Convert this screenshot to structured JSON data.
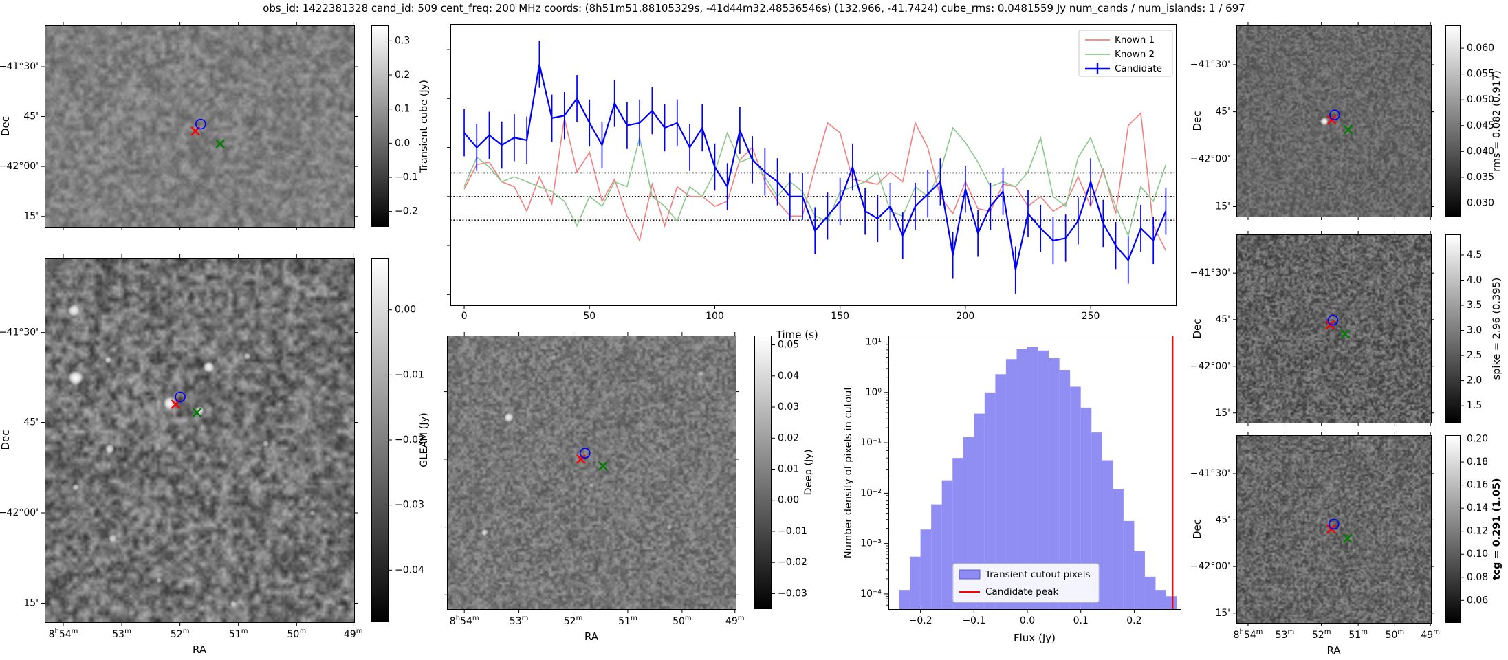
{
  "title": "obs_id: 1422381328 cand_id: 509 cent_freq: 200 MHz coords: (8h51m51.88105329s, -41d44m32.48536546s) (132.966, -41.7424) cube_rms: 0.0481559 Jy num_cands / num_islands: 1 / 697",
  "colors": {
    "known1": "#f28080",
    "known2": "#8cc98c",
    "candidate": "#0000ff",
    "marker_red": "#ff0000",
    "marker_green": "#007d00",
    "marker_blue": "#0000ff",
    "hist_fill": "#7472f0",
    "peak_line": "#ff0000",
    "dotted_line": "#000000"
  },
  "dec_ticks": [
    {
      "label": "-41°30'",
      "f": 0.205
    },
    {
      "label": "45'",
      "f": 0.452
    },
    {
      "label": "-42°00'",
      "f": 0.7
    },
    {
      "label": "15'",
      "f": 0.948
    }
  ],
  "ra_ticks": [
    {
      "label": "8h54m",
      "f": 0.06
    },
    {
      "label": "53m",
      "f": 0.249
    },
    {
      "label": "52m",
      "f": 0.437
    },
    {
      "label": "51m",
      "f": 0.626
    },
    {
      "label": "50m",
      "f": 0.814
    },
    {
      "label": "49m",
      "f": 0.997
    }
  ],
  "cutouts": {
    "transient": {
      "xlabel": "",
      "ylabel": "Dec",
      "ra_labeled": false,
      "dec_labeled": true,
      "colorbar": {
        "label": "Transient cube (Jy)",
        "bold": false,
        "vmin": -0.245,
        "vmax": 0.345,
        "ticks": [
          "0.3",
          "0.2",
          "0.1",
          "0.0",
          "-0.1",
          "-0.2"
        ]
      },
      "markers": [
        {
          "shape": "x",
          "color": "#ff0000",
          "fx": 0.487,
          "fy": 0.525
        },
        {
          "shape": "circle",
          "color": "#0000ff",
          "fx": 0.504,
          "fy": 0.49
        },
        {
          "shape": "x",
          "color": "#007d00",
          "fx": 0.567,
          "fy": 0.588
        }
      ],
      "noise": {
        "scale": 7,
        "contrast": 50,
        "base": 128,
        "seed": 11
      },
      "blobs": []
    },
    "gleam": {
      "xlabel": "RA",
      "ylabel": "Dec",
      "ra_labeled": true,
      "dec_labeled": true,
      "colorbar": {
        "label": "GLEAM (Jy)",
        "bold": false,
        "vmin": -0.048,
        "vmax": 0.008,
        "ticks": [
          "0.00",
          "-0.01",
          "-0.02",
          "-0.03",
          "-0.04"
        ]
      },
      "markers": [
        {
          "shape": "x",
          "color": "#ff0000",
          "fx": 0.423,
          "fy": 0.402
        },
        {
          "shape": "circle",
          "color": "#0000ff",
          "fx": 0.438,
          "fy": 0.382
        },
        {
          "shape": "x",
          "color": "#007d00",
          "fx": 0.492,
          "fy": 0.425
        }
      ],
      "noise": {
        "scale": 8,
        "contrast": 85,
        "base": 115,
        "seed": 22
      },
      "blobs": [
        {
          "fx": 0.405,
          "fy": 0.4,
          "r": 10,
          "a": 1.0
        },
        {
          "fx": 0.095,
          "fy": 0.145,
          "r": 9,
          "a": 0.95
        },
        {
          "fx": 0.1,
          "fy": 0.33,
          "r": 11,
          "a": 1.0
        },
        {
          "fx": 0.205,
          "fy": 0.28,
          "r": 5,
          "a": 0.7
        },
        {
          "fx": 0.53,
          "fy": 0.3,
          "r": 8,
          "a": 0.9
        },
        {
          "fx": 0.655,
          "fy": 0.27,
          "r": 5,
          "a": 0.6
        },
        {
          "fx": 0.5,
          "fy": 0.42,
          "r": 7,
          "a": 0.85
        },
        {
          "fx": 0.21,
          "fy": 0.525,
          "r": 7,
          "a": 0.8
        },
        {
          "fx": 0.715,
          "fy": 0.51,
          "r": 5,
          "a": 0.6
        },
        {
          "fx": 0.1,
          "fy": 0.63,
          "r": 5,
          "a": 0.65
        },
        {
          "fx": 0.22,
          "fy": 0.77,
          "r": 6,
          "a": 0.7
        },
        {
          "fx": 0.865,
          "fy": 0.7,
          "r": 4,
          "a": 0.5
        },
        {
          "fx": 0.37,
          "fy": 0.885,
          "r": 4,
          "a": 0.5
        },
        {
          "fx": 0.61,
          "fy": 0.95,
          "r": 5,
          "a": 0.6
        }
      ]
    },
    "deep": {
      "xlabel": "RA",
      "ylabel": "",
      "ra_labeled": true,
      "dec_labeled": false,
      "colorbar": {
        "label": "Deep (Jy)",
        "bold": false,
        "vmin": -0.035,
        "vmax": 0.053,
        "ticks": [
          "0.05",
          "0.04",
          "0.03",
          "0.02",
          "0.01",
          "0.00",
          "-0.01",
          "-0.02",
          "-0.03"
        ]
      },
      "markers": [
        {
          "shape": "x",
          "color": "#ff0000",
          "fx": 0.464,
          "fy": 0.452
        },
        {
          "shape": "circle",
          "color": "#0000ff",
          "fx": 0.478,
          "fy": 0.43
        },
        {
          "shape": "x",
          "color": "#007d00",
          "fx": 0.54,
          "fy": 0.477
        }
      ],
      "noise": {
        "scale": 4,
        "contrast": 58,
        "base": 120,
        "seed": 33
      },
      "blobs": [
        {
          "fx": 0.215,
          "fy": 0.3,
          "r": 7,
          "a": 0.9
        },
        {
          "fx": 0.13,
          "fy": 0.72,
          "r": 5,
          "a": 0.7
        },
        {
          "fx": 0.77,
          "fy": 0.7,
          "r": 4,
          "a": 0.5
        },
        {
          "fx": 0.5,
          "fy": 0.55,
          "r": 4,
          "a": 0.4
        },
        {
          "fx": 0.88,
          "fy": 0.14,
          "r": 4,
          "a": 0.45
        },
        {
          "fx": 0.37,
          "fy": 0.08,
          "r": 4,
          "a": 0.4
        }
      ]
    },
    "rms": {
      "xlabel": "",
      "ylabel": "Dec",
      "ra_labeled": false,
      "dec_labeled": true,
      "colorbar": {
        "label": "rms = 0.082 (0.917)",
        "bold": false,
        "vmin": 0.0274,
        "vmax": 0.0644,
        "ticks": [
          "0.060",
          "0.055",
          "0.050",
          "0.045",
          "0.040",
          "0.035",
          "0.030"
        ]
      },
      "markers": [
        {
          "shape": "x",
          "color": "#ff0000",
          "fx": 0.49,
          "fy": 0.495
        },
        {
          "shape": "circle",
          "color": "#0000ff",
          "fx": 0.505,
          "fy": 0.468
        },
        {
          "shape": "x",
          "color": "#007d00",
          "fx": 0.575,
          "fy": 0.545
        }
      ],
      "noise": {
        "scale": 3,
        "contrast": 52,
        "base": 105,
        "seed": 44
      },
      "blobs": [
        {
          "fx": 0.452,
          "fy": 0.502,
          "r": 6,
          "a": 1.0
        }
      ]
    },
    "spike": {
      "xlabel": "",
      "ylabel": "Dec",
      "ra_labeled": false,
      "dec_labeled": true,
      "colorbar": {
        "label": "spike = 2.96 (0.395)",
        "bold": false,
        "vmin": 1.16,
        "vmax": 4.91,
        "ticks": [
          "4.5",
          "4.0",
          "3.5",
          "3.0",
          "2.5",
          "2.0",
          "1.5"
        ]
      },
      "markers": [
        {
          "shape": "x",
          "color": "#ff0000",
          "fx": 0.482,
          "fy": 0.48
        },
        {
          "shape": "circle",
          "color": "#0000ff",
          "fx": 0.496,
          "fy": 0.455
        },
        {
          "shape": "x",
          "color": "#007d00",
          "fx": 0.558,
          "fy": 0.528
        }
      ],
      "noise": {
        "scale": 3,
        "contrast": 78,
        "base": 100,
        "seed": 55
      },
      "blobs": []
    },
    "tcg": {
      "xlabel": "RA",
      "ylabel": "Dec",
      "ra_labeled": true,
      "dec_labeled": true,
      "colorbar": {
        "label": "tcg = 0.291 (1.05)",
        "bold": true,
        "vmin": 0.0405,
        "vmax": 0.2033,
        "ticks": [
          "0.20",
          "0.18",
          "0.16",
          "0.14",
          "0.12",
          "0.10",
          "0.08",
          "0.06"
        ]
      },
      "markers": [
        {
          "shape": "x",
          "color": "#ff0000",
          "fx": 0.487,
          "fy": 0.5
        },
        {
          "shape": "circle",
          "color": "#0000ff",
          "fx": 0.501,
          "fy": 0.474
        },
        {
          "shape": "x",
          "color": "#007d00",
          "fx": 0.571,
          "fy": 0.55
        }
      ],
      "noise": {
        "scale": 3,
        "contrast": 68,
        "base": 105,
        "seed": 66
      },
      "blobs": []
    }
  },
  "chart_data": [
    {
      "id": "lightcurve",
      "type": "line",
      "title": "",
      "xlabel": "Time (s)",
      "ylabel": "",
      "xlim": [
        -5.5,
        284
      ],
      "ylim": [
        -0.222,
        0.352
      ],
      "x_ticks": [
        0,
        50,
        100,
        150,
        200,
        250
      ],
      "y_ticks": [
        0.3,
        0.2,
        0.1,
        0.0,
        -0.1,
        -0.2
      ],
      "y_tick_labels_shown": false,
      "grid": false,
      "hlines": {
        "values": [
          0.0482,
          0.0,
          -0.0482
        ],
        "style": "dotted"
      },
      "legend_position": "upper right",
      "x": [
        0,
        5,
        10,
        15,
        20,
        25,
        30,
        35,
        40,
        45,
        50,
        55,
        60,
        65,
        70,
        75,
        80,
        85,
        90,
        95,
        100,
        105,
        110,
        115,
        120,
        125,
        130,
        135,
        140,
        145,
        150,
        155,
        160,
        165,
        170,
        175,
        180,
        185,
        190,
        195,
        200,
        205,
        210,
        215,
        220,
        225,
        230,
        235,
        240,
        245,
        250,
        255,
        260,
        265,
        270,
        275,
        280
      ],
      "series": [
        {
          "name": "Known 1",
          "color": "#f28080",
          "values": [
            0.015,
            0.065,
            0.07,
            0.03,
            0.02,
            -0.03,
            0.04,
            -0.015,
            0.16,
            0.05,
            0.09,
            -0.01,
            0.035,
            -0.04,
            -0.09,
            0.025,
            -0.06,
            0.02,
            0.0,
            0.0,
            -0.02,
            -0.01,
            0.075,
            0.1,
            0.03,
            -0.01,
            -0.04,
            -0.04,
            0.06,
            0.15,
            0.13,
            0.035,
            0.03,
            0.025,
            0.05,
            0.03,
            0.15,
            0.1,
            0.0,
            -0.035,
            0.03,
            -0.025,
            -0.03,
            0.025,
            0.02,
            -0.02,
            0.0,
            -0.03,
            -0.015,
            0.04,
            -0.02,
            0.055,
            -0.035,
            0.145,
            0.17,
            -0.06,
            -0.11
          ]
        },
        {
          "name": "Known 2",
          "color": "#8cc98c",
          "values": [
            0.02,
            0.08,
            0.06,
            0.03,
            0.04,
            0.03,
            0.02,
            0.01,
            -0.01,
            -0.06,
            0.0,
            -0.02,
            0.03,
            0.02,
            0.12,
            0.0,
            -0.02,
            -0.05,
            0.02,
            0.0,
            0.05,
            0.13,
            0.07,
            0.08,
            0.04,
            0.0,
            0.03,
            0.01,
            -0.04,
            -0.05,
            0.01,
            0.02,
            0.03,
            0.05,
            -0.03,
            -0.04,
            0.02,
            0.0,
            0.05,
            0.14,
            0.11,
            0.07,
            0.02,
            0.03,
            0.02,
            0.05,
            0.12,
            0.0,
            -0.02,
            0.08,
            0.12,
            0.05,
            -0.02,
            -0.08,
            0.02,
            -0.01,
            0.065
          ]
        },
        {
          "name": "Candidate",
          "color": "#0000ff",
          "yerr": 0.048,
          "values": [
            0.13,
            0.1,
            0.125,
            0.105,
            0.12,
            0.115,
            0.27,
            0.16,
            0.165,
            0.2,
            0.15,
            0.105,
            0.19,
            0.145,
            0.15,
            0.175,
            0.14,
            0.15,
            0.1,
            0.14,
            0.06,
            0.02,
            0.135,
            0.075,
            0.05,
            0.03,
            0.0,
            0.0,
            -0.07,
            -0.04,
            -0.01,
            0.06,
            -0.03,
            -0.045,
            -0.02,
            -0.08,
            -0.02,
            0.005,
            0.03,
            -0.12,
            0.015,
            -0.075,
            -0.02,
            0.01,
            -0.15,
            -0.035,
            -0.065,
            -0.09,
            -0.085,
            -0.05,
            0.03,
            -0.055,
            -0.1,
            -0.13,
            -0.065,
            -0.09,
            -0.03
          ]
        }
      ]
    },
    {
      "id": "flux-histogram",
      "type": "bar",
      "title": "",
      "xlabel": "Flux (Jy)",
      "ylabel": "Number density of pixels in cutout",
      "yscale": "log",
      "xlim": [
        -0.26,
        0.287
      ],
      "ylim": [
        5e-05,
        13.5
      ],
      "x_ticks": [
        -0.2,
        -0.1,
        0.0,
        0.1,
        0.2
      ],
      "y_tick_exponents": [
        1,
        0,
        -1,
        -2,
        -3,
        -4
      ],
      "bins": {
        "start": -0.24,
        "width": 0.02
      },
      "values": [
        0.00012,
        0.00055,
        0.0019,
        0.006,
        0.018,
        0.05,
        0.13,
        0.38,
        1.0,
        2.3,
        4.6,
        7.2,
        8.0,
        6.8,
        4.8,
        2.8,
        1.3,
        0.5,
        0.16,
        0.045,
        0.012,
        0.0028,
        0.0007,
        0.00022,
        0.00012,
        9e-05
      ],
      "bar_label": "Transient cutout pixels",
      "bar_color": "#7472f0",
      "bar_opacity": 0.8,
      "peak_line": {
        "label": "Candidate peak",
        "value": 0.272,
        "color": "#ff0000"
      },
      "legend_position": "lower center"
    }
  ]
}
